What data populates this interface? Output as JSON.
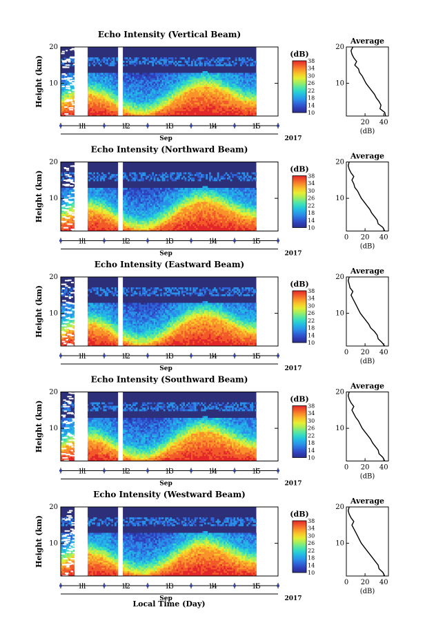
{
  "figure": {
    "xlabel_global": "Local Time (Day)",
    "year_label": "2017",
    "month_label": "Sep",
    "colorbar": {
      "unit_label": "(dB)",
      "ticks": [
        "10",
        "14",
        "18",
        "22",
        "26",
        "30",
        "34",
        "38"
      ],
      "range": [
        10,
        38
      ],
      "colormap": [
        "#2b2f8f",
        "#2f3fb8",
        "#2e63d8",
        "#2a8fe8",
        "#23b5e6",
        "#2ed8c9",
        "#5ee89a",
        "#a6ee5b",
        "#e6ee33",
        "#f8c62a",
        "#f9922a",
        "#f25a2a",
        "#e2272a"
      ]
    },
    "average_panel": {
      "title": "Average",
      "xlabel": "(dB)"
    },
    "background_color": "#2d2f78",
    "gap_color": "#ffffff"
  },
  "chart_data": [
    {
      "type": "heatmap",
      "title": "Echo Intensity (Vertical Beam)",
      "ylabel": "Height (km)",
      "y_ticks": [
        "10",
        "20"
      ],
      "ylim": [
        1,
        20
      ],
      "x_ticks": [
        "11",
        "12",
        "13",
        "14",
        "15"
      ],
      "xlim": [
        10.5,
        15.5
      ],
      "data_extent_days": [
        10.5,
        15.0
      ],
      "profile": {
        "xlim": [
          0,
          45
        ],
        "x_ticks": [
          "20",
          "40"
        ],
        "height_km": [
          1,
          2,
          3,
          4,
          5,
          6,
          7,
          8,
          9,
          10,
          11,
          12,
          13,
          14,
          15,
          16,
          17,
          18,
          19,
          20
        ],
        "values_db": [
          42,
          41,
          36,
          37,
          35,
          32,
          30,
          27,
          24,
          21,
          19,
          17,
          14,
          13,
          9,
          11,
          8,
          6,
          5,
          7
        ]
      }
    },
    {
      "type": "heatmap",
      "title": "Echo Intensity (Northward Beam)",
      "ylabel": "Height (km)",
      "y_ticks": [
        "10",
        "20"
      ],
      "ylim": [
        1,
        20
      ],
      "x_ticks": [
        "11",
        "12",
        "13",
        "14",
        "15"
      ],
      "xlim": [
        10.5,
        15.5
      ],
      "data_extent_days": [
        10.5,
        15.0
      ],
      "profile": {
        "xlim": [
          0,
          45
        ],
        "x_ticks": [
          "0",
          "20",
          "40"
        ],
        "height_km": [
          1,
          2,
          3,
          4,
          5,
          6,
          7,
          8,
          9,
          10,
          11,
          12,
          13,
          14,
          15,
          16,
          17,
          18,
          19,
          20
        ],
        "values_db": [
          41,
          39,
          34,
          33,
          30,
          27,
          25,
          22,
          19,
          16,
          14,
          12,
          9,
          8,
          6,
          8,
          5,
          3,
          2,
          3
        ]
      }
    },
    {
      "type": "heatmap",
      "title": "Echo Intensity (Eastward Beam)",
      "ylabel": "Height (km)",
      "y_ticks": [
        "10",
        "20"
      ],
      "ylim": [
        1,
        20
      ],
      "x_ticks": [
        "11",
        "12",
        "13",
        "14",
        "15"
      ],
      "xlim": [
        10.5,
        15.5
      ],
      "data_extent_days": [
        10.5,
        15.0
      ],
      "profile": {
        "xlim": [
          0,
          45
        ],
        "x_ticks": [
          "0",
          "20",
          "40"
        ],
        "height_km": [
          1,
          2,
          3,
          4,
          5,
          6,
          7,
          8,
          9,
          10,
          11,
          12,
          13,
          14,
          15,
          16,
          17,
          18,
          19,
          20
        ],
        "values_db": [
          41,
          38,
          34,
          33,
          30,
          26,
          24,
          21,
          18,
          15,
          13,
          11,
          9,
          7,
          5,
          7,
          4,
          3,
          2,
          3
        ]
      }
    },
    {
      "type": "heatmap",
      "title": "Echo Intensity (Southward Beam)",
      "ylabel": "Height (km)",
      "y_ticks": [
        "10",
        "20"
      ],
      "ylim": [
        1,
        20
      ],
      "x_ticks": [
        "11",
        "12",
        "13",
        "14",
        "15"
      ],
      "xlim": [
        10.5,
        15.5
      ],
      "data_extent_days": [
        10.5,
        15.0
      ],
      "profile": {
        "xlim": [
          0,
          45
        ],
        "x_ticks": [
          "0",
          "20",
          "40"
        ],
        "height_km": [
          1,
          2,
          3,
          4,
          5,
          6,
          7,
          8,
          9,
          10,
          11,
          12,
          13,
          14,
          15,
          16,
          17,
          18,
          19,
          20
        ],
        "values_db": [
          41,
          39,
          35,
          34,
          31,
          28,
          26,
          23,
          20,
          17,
          15,
          13,
          10,
          8,
          6,
          8,
          5,
          3,
          2,
          3
        ]
      }
    },
    {
      "type": "heatmap",
      "title": "Echo Intensity (Westward Beam)",
      "ylabel": "Height (km)",
      "y_ticks": [
        "10",
        "20"
      ],
      "ylim": [
        1,
        20
      ],
      "x_ticks": [
        "11",
        "12",
        "13",
        "14",
        "15"
      ],
      "xlim": [
        10.5,
        15.5
      ],
      "data_extent_days": [
        10.5,
        15.0
      ],
      "profile": {
        "xlim": [
          0,
          45
        ],
        "x_ticks": [
          "0",
          "20",
          "40"
        ],
        "height_km": [
          1,
          2,
          3,
          4,
          5,
          6,
          7,
          8,
          9,
          10,
          11,
          12,
          13,
          14,
          15,
          16,
          17,
          18,
          19,
          20
        ],
        "values_db": [
          41,
          39,
          35,
          34,
          31,
          28,
          25,
          22,
          19,
          16,
          14,
          12,
          10,
          8,
          6,
          8,
          5,
          3,
          2,
          3
        ]
      }
    }
  ]
}
